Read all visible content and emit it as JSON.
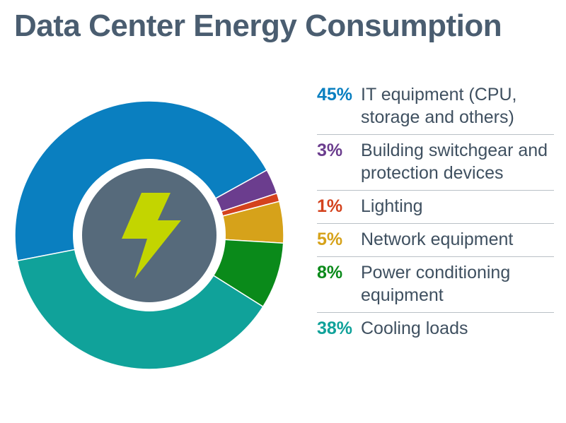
{
  "chart_data": {
    "type": "donut",
    "title": "Data Center Energy Consumption",
    "categories": [
      "IT equipment (CPU, storage and others)",
      "Building switchgear and protection devices",
      "Lighting",
      "Network equipment",
      "Power conditioning equipment",
      "Cooling loads"
    ],
    "values": [
      45,
      3,
      1,
      5,
      8,
      38
    ],
    "value_labels": [
      "45%",
      "3%",
      "1%",
      "5%",
      "8%",
      "38%"
    ],
    "colors": [
      "#0a7fc0",
      "#6b3d8e",
      "#d4421d",
      "#d6a21a",
      "#0a8a1a",
      "#10a29a"
    ]
  }
}
